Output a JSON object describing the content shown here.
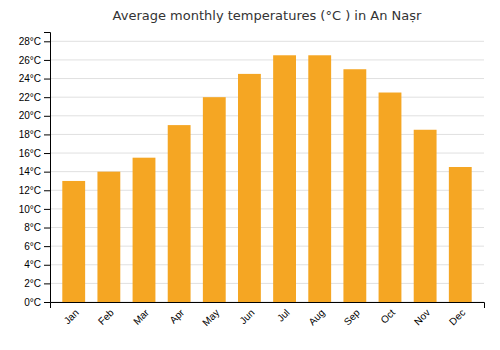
{
  "chart_data": {
    "type": "bar",
    "title": "Average monthly temperatures (°C ) in An Naṣr",
    "categories": [
      "Jan",
      "Feb",
      "Mar",
      "Apr",
      "May",
      "Jun",
      "Jul",
      "Aug",
      "Sep",
      "Oct",
      "Nov",
      "Dec"
    ],
    "values": [
      13,
      14,
      15.5,
      19,
      22,
      24.5,
      26.5,
      26.5,
      25,
      22.5,
      18.5,
      14.5
    ],
    "color": "#F5A623",
    "ylim": [
      0,
      29
    ],
    "yticks": [
      {
        "value": 0,
        "label": "0°C"
      },
      {
        "value": 2,
        "label": "2°C"
      },
      {
        "value": 4,
        "label": "4°C"
      },
      {
        "value": 6,
        "label": "6°C"
      },
      {
        "value": 8,
        "label": "8°C"
      },
      {
        "value": 10,
        "label": "10°C"
      },
      {
        "value": 12,
        "label": "12°C"
      },
      {
        "value": 14,
        "label": "14°C"
      },
      {
        "value": 16,
        "label": "16°C"
      },
      {
        "value": 18,
        "label": "18°C"
      },
      {
        "value": 20,
        "label": "20°C"
      },
      {
        "value": 22,
        "label": "22°C"
      },
      {
        "value": 24,
        "label": "24°C"
      },
      {
        "value": 26,
        "label": "26°C"
      },
      {
        "value": 28,
        "label": "28°C"
      }
    ],
    "grid": true
  }
}
